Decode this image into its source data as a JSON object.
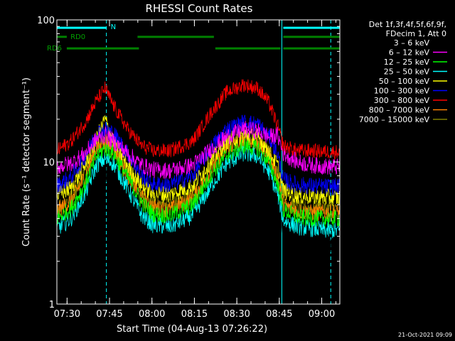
{
  "chart_data": {
    "type": "line",
    "title": "RHESSI Count Rates",
    "xlabel": "Start Time (04-Aug-13 07:26:22)",
    "ylabel": "Count Rate (s⁻¹ detector segment⁻¹)",
    "yscale": "log",
    "ylim": [
      1,
      100
    ],
    "xlim_minutes": [
      0,
      100
    ],
    "x_ticks": [
      {
        "label": "07:30",
        "min": 3.6
      },
      {
        "label": "07:45",
        "min": 18.6
      },
      {
        "label": "08:00",
        "min": 33.6
      },
      {
        "label": "08:15",
        "min": 48.6
      },
      {
        "label": "08:30",
        "min": 63.6
      },
      {
        "label": "08:45",
        "min": 78.6
      },
      {
        "label": "09:00",
        "min": 93.6
      }
    ],
    "y_ticks": [
      {
        "label": "1",
        "value": 1
      },
      {
        "label": "10",
        "value": 10
      },
      {
        "label": "100",
        "value": 100
      }
    ],
    "legend_header": [
      "Det 1f,3f,4f,5f,6f,9f,",
      "FDecim 1, Att 0"
    ],
    "legend_position": "right",
    "x": [
      0,
      5,
      10,
      14,
      17,
      20,
      25,
      30,
      34,
      40,
      48,
      55,
      60,
      66,
      71,
      75,
      78,
      80,
      85,
      90,
      95,
      100
    ],
    "series": [
      {
        "name": "3 – 6 keV",
        "color": "#000000",
        "values": [
          2.6,
          3.2,
          5.5,
          8.8,
          9.2,
          8.2,
          5.2,
          3.4,
          2.9,
          2.8,
          3.4,
          6.0,
          8.9,
          11.0,
          10.5,
          7.5,
          5.0,
          3.5,
          2.9,
          2.7,
          2.6,
          2.5
        ]
      },
      {
        "name": "6 – 12 keV",
        "color": "#ff00ff",
        "values": [
          9.2,
          9.8,
          11.5,
          14.5,
          15.5,
          14.0,
          11.5,
          9.5,
          8.8,
          8.7,
          9.5,
          12.5,
          15.0,
          17.0,
          16.5,
          15.0,
          15.5,
          11.5,
          10.0,
          9.5,
          9.3,
          9.2
        ]
      },
      {
        "name": "12 – 25 keV",
        "color": "#00ff00",
        "values": [
          4.0,
          4.7,
          7.0,
          11.0,
          12.5,
          11.5,
          7.8,
          5.2,
          4.3,
          4.2,
          5.0,
          8.5,
          11.2,
          13.0,
          12.5,
          10.0,
          7.0,
          4.6,
          4.1,
          4.0,
          4.0,
          4.0
        ]
      },
      {
        "name": "25 – 50 keV",
        "color": "#00ffff",
        "values": [
          3.4,
          4.0,
          6.0,
          9.5,
          10.5,
          9.8,
          6.5,
          4.2,
          3.6,
          3.5,
          4.2,
          7.0,
          9.8,
          11.5,
          11.0,
          8.5,
          6.0,
          3.9,
          3.5,
          3.4,
          3.3,
          3.3
        ]
      },
      {
        "name": "50 – 100 keV",
        "color": "#ffff00",
        "values": [
          5.8,
          6.6,
          9.5,
          14.5,
          20.0,
          14.0,
          9.5,
          6.8,
          6.0,
          5.9,
          6.8,
          10.5,
          14.0,
          15.5,
          15.0,
          12.0,
          9.5,
          6.3,
          5.8,
          5.7,
          5.6,
          5.6
        ]
      },
      {
        "name": "100 – 300 keV",
        "color": "#0000ff",
        "values": [
          6.8,
          7.8,
          11.0,
          16.0,
          17.0,
          16.0,
          11.5,
          8.0,
          7.0,
          6.9,
          8.0,
          13.0,
          17.0,
          19.0,
          18.5,
          15.0,
          11.5,
          7.5,
          6.9,
          6.8,
          6.7,
          6.7
        ]
      },
      {
        "name": "300 – 800 keV",
        "color": "#ff0000",
        "values": [
          12.0,
          14.0,
          19.0,
          27.0,
          33.0,
          25.0,
          17.0,
          13.0,
          12.0,
          12.0,
          14.0,
          23.0,
          31.0,
          35.0,
          33.0,
          26.0,
          18.0,
          13.0,
          12.0,
          12.0,
          11.8,
          11.8
        ]
      },
      {
        "name": "800 – 7000 keV",
        "color": "#ff8000",
        "values": [
          4.5,
          5.3,
          8.0,
          12.5,
          13.5,
          12.5,
          8.0,
          5.6,
          4.8,
          4.6,
          5.5,
          9.0,
          12.5,
          14.0,
          13.5,
          11.0,
          7.8,
          5.0,
          4.5,
          4.4,
          4.4,
          4.4
        ]
      },
      {
        "name": "7000 – 15000 keV",
        "color": "#808000",
        "values": [
          4.8,
          5.6,
          8.5,
          13.0,
          14.0,
          13.0,
          8.6,
          6.0,
          5.1,
          4.9,
          5.8,
          9.5,
          13.0,
          14.5,
          14.0,
          11.5,
          8.2,
          5.3,
          4.8,
          4.7,
          4.7,
          4.7
        ]
      }
    ],
    "annotations": {
      "vertical_lines_minutes": [
        {
          "min": 0,
          "color": "#00ffff",
          "style": "solid"
        },
        {
          "min": 17.5,
          "color": "#00ffff",
          "style": "dashed"
        },
        {
          "min": 79.5,
          "color": "#00ffff",
          "style": "solid"
        },
        {
          "min": 96.8,
          "color": "#00ffff",
          "style": "dashed"
        }
      ],
      "bars": [
        {
          "label": "N",
          "color": "#00ffff",
          "level": 88,
          "segments": [
            [
              0,
              17.5
            ],
            [
              80,
              100
            ]
          ]
        },
        {
          "label": "RD0",
          "color": "#008000",
          "level": 76,
          "segments": [
            [
              0,
              3.5
            ],
            [
              28.5,
              55.5
            ],
            [
              80,
              100
            ]
          ]
        },
        {
          "label": "RD6",
          "color": "#008000",
          "level": 63,
          "segments": [
            [
              3.5,
              29
            ],
            [
              56,
              79
            ],
            [
              80,
              100
            ]
          ]
        }
      ]
    }
  },
  "footer_date": "21-Oct-2021 09:09"
}
